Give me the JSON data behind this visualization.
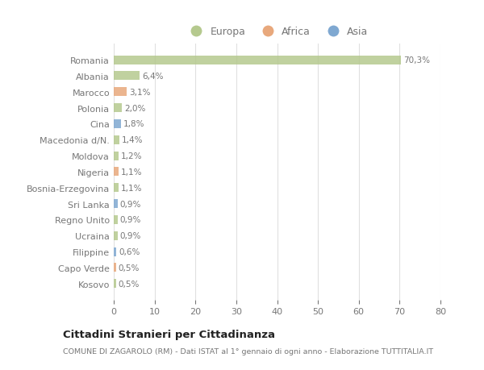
{
  "categories": [
    "Kosovo",
    "Capo Verde",
    "Filippine",
    "Ucraina",
    "Regno Unito",
    "Sri Lanka",
    "Bosnia-Erzegovina",
    "Nigeria",
    "Moldova",
    "Macedonia d/N.",
    "Cina",
    "Polonia",
    "Marocco",
    "Albania",
    "Romania"
  ],
  "values": [
    0.5,
    0.5,
    0.6,
    0.9,
    0.9,
    0.9,
    1.1,
    1.1,
    1.2,
    1.4,
    1.8,
    2.0,
    3.1,
    6.4,
    70.3
  ],
  "labels": [
    "0,5%",
    "0,5%",
    "0,6%",
    "0,9%",
    "0,9%",
    "0,9%",
    "1,1%",
    "1,1%",
    "1,2%",
    "1,4%",
    "1,8%",
    "2,0%",
    "3,1%",
    "6,4%",
    "70,3%"
  ],
  "colors": [
    "#b5c98e",
    "#e8a87c",
    "#7fa8d1",
    "#b5c98e",
    "#b5c98e",
    "#7fa8d1",
    "#b5c98e",
    "#e8a87c",
    "#b5c98e",
    "#b5c98e",
    "#7fa8d1",
    "#b5c98e",
    "#e8a87c",
    "#b5c98e",
    "#b5c98e"
  ],
  "legend_labels": [
    "Europa",
    "Africa",
    "Asia"
  ],
  "legend_colors": [
    "#b5c98e",
    "#e8a87c",
    "#7fa8d1"
  ],
  "title": "Cittadini Stranieri per Cittadinanza",
  "subtitle": "COMUNE DI ZAGAROLO (RM) - Dati ISTAT al 1° gennaio di ogni anno - Elaborazione TUTTITALIA.IT",
  "xlim": [
    0,
    80
  ],
  "xticks": [
    0,
    10,
    20,
    30,
    40,
    50,
    60,
    70,
    80
  ],
  "background_color": "#ffffff",
  "grid_color": "#e0e0e0",
  "bar_height": 0.55,
  "text_color": "#777777",
  "title_color": "#222222",
  "subtitle_color": "#777777"
}
